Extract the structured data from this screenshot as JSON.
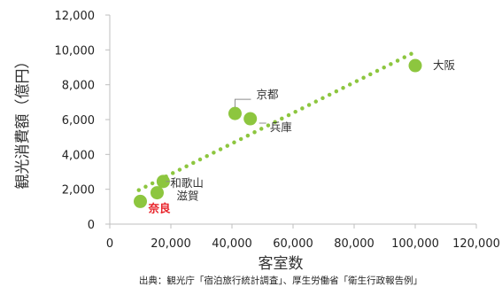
{
  "chart_data": {
    "type": "scatter",
    "title": "",
    "xlabel": "客室数",
    "ylabel": "観光消費額（億円）",
    "xlim": [
      0,
      120000
    ],
    "ylim": [
      0,
      12000
    ],
    "x_ticks": [
      0,
      20000,
      40000,
      60000,
      80000,
      100000,
      120000
    ],
    "y_ticks": [
      0,
      2000,
      4000,
      6000,
      8000,
      10000,
      12000
    ],
    "x_tick_labels": [
      "0",
      "20,000",
      "40,000",
      "60,000",
      "80,000",
      "100,000",
      "120,000"
    ],
    "y_tick_labels": [
      "0",
      "2,000",
      "4,000",
      "6,000",
      "8,000",
      "10,000",
      "12,000"
    ],
    "grid": false,
    "points": [
      {
        "name": "奈良",
        "x": 10000,
        "y": 1300,
        "highlight": true
      },
      {
        "name": "滋賀",
        "x": 15500,
        "y": 1800,
        "highlight": false
      },
      {
        "name": "和歌山",
        "x": 17500,
        "y": 2450,
        "highlight": false
      },
      {
        "name": "京都",
        "x": 41000,
        "y": 6350,
        "highlight": false
      },
      {
        "name": "兵庫",
        "x": 46000,
        "y": 6050,
        "highlight": false
      },
      {
        "name": "大阪",
        "x": 100000,
        "y": 9100,
        "highlight": false
      }
    ],
    "trendline": {
      "style": "dotted",
      "x_start": 9500,
      "y_start": 1950,
      "x_end": 99000,
      "y_end": 9800
    },
    "colors": {
      "marker": "#8dc63f",
      "trendline": "#8dc63f",
      "highlight_label": "#e8242b",
      "axis": "#bfbfbf"
    }
  },
  "source_note": "出典：観光庁「宿泊旅行統計調査」、厚生労働省「衛生行政報告例」"
}
